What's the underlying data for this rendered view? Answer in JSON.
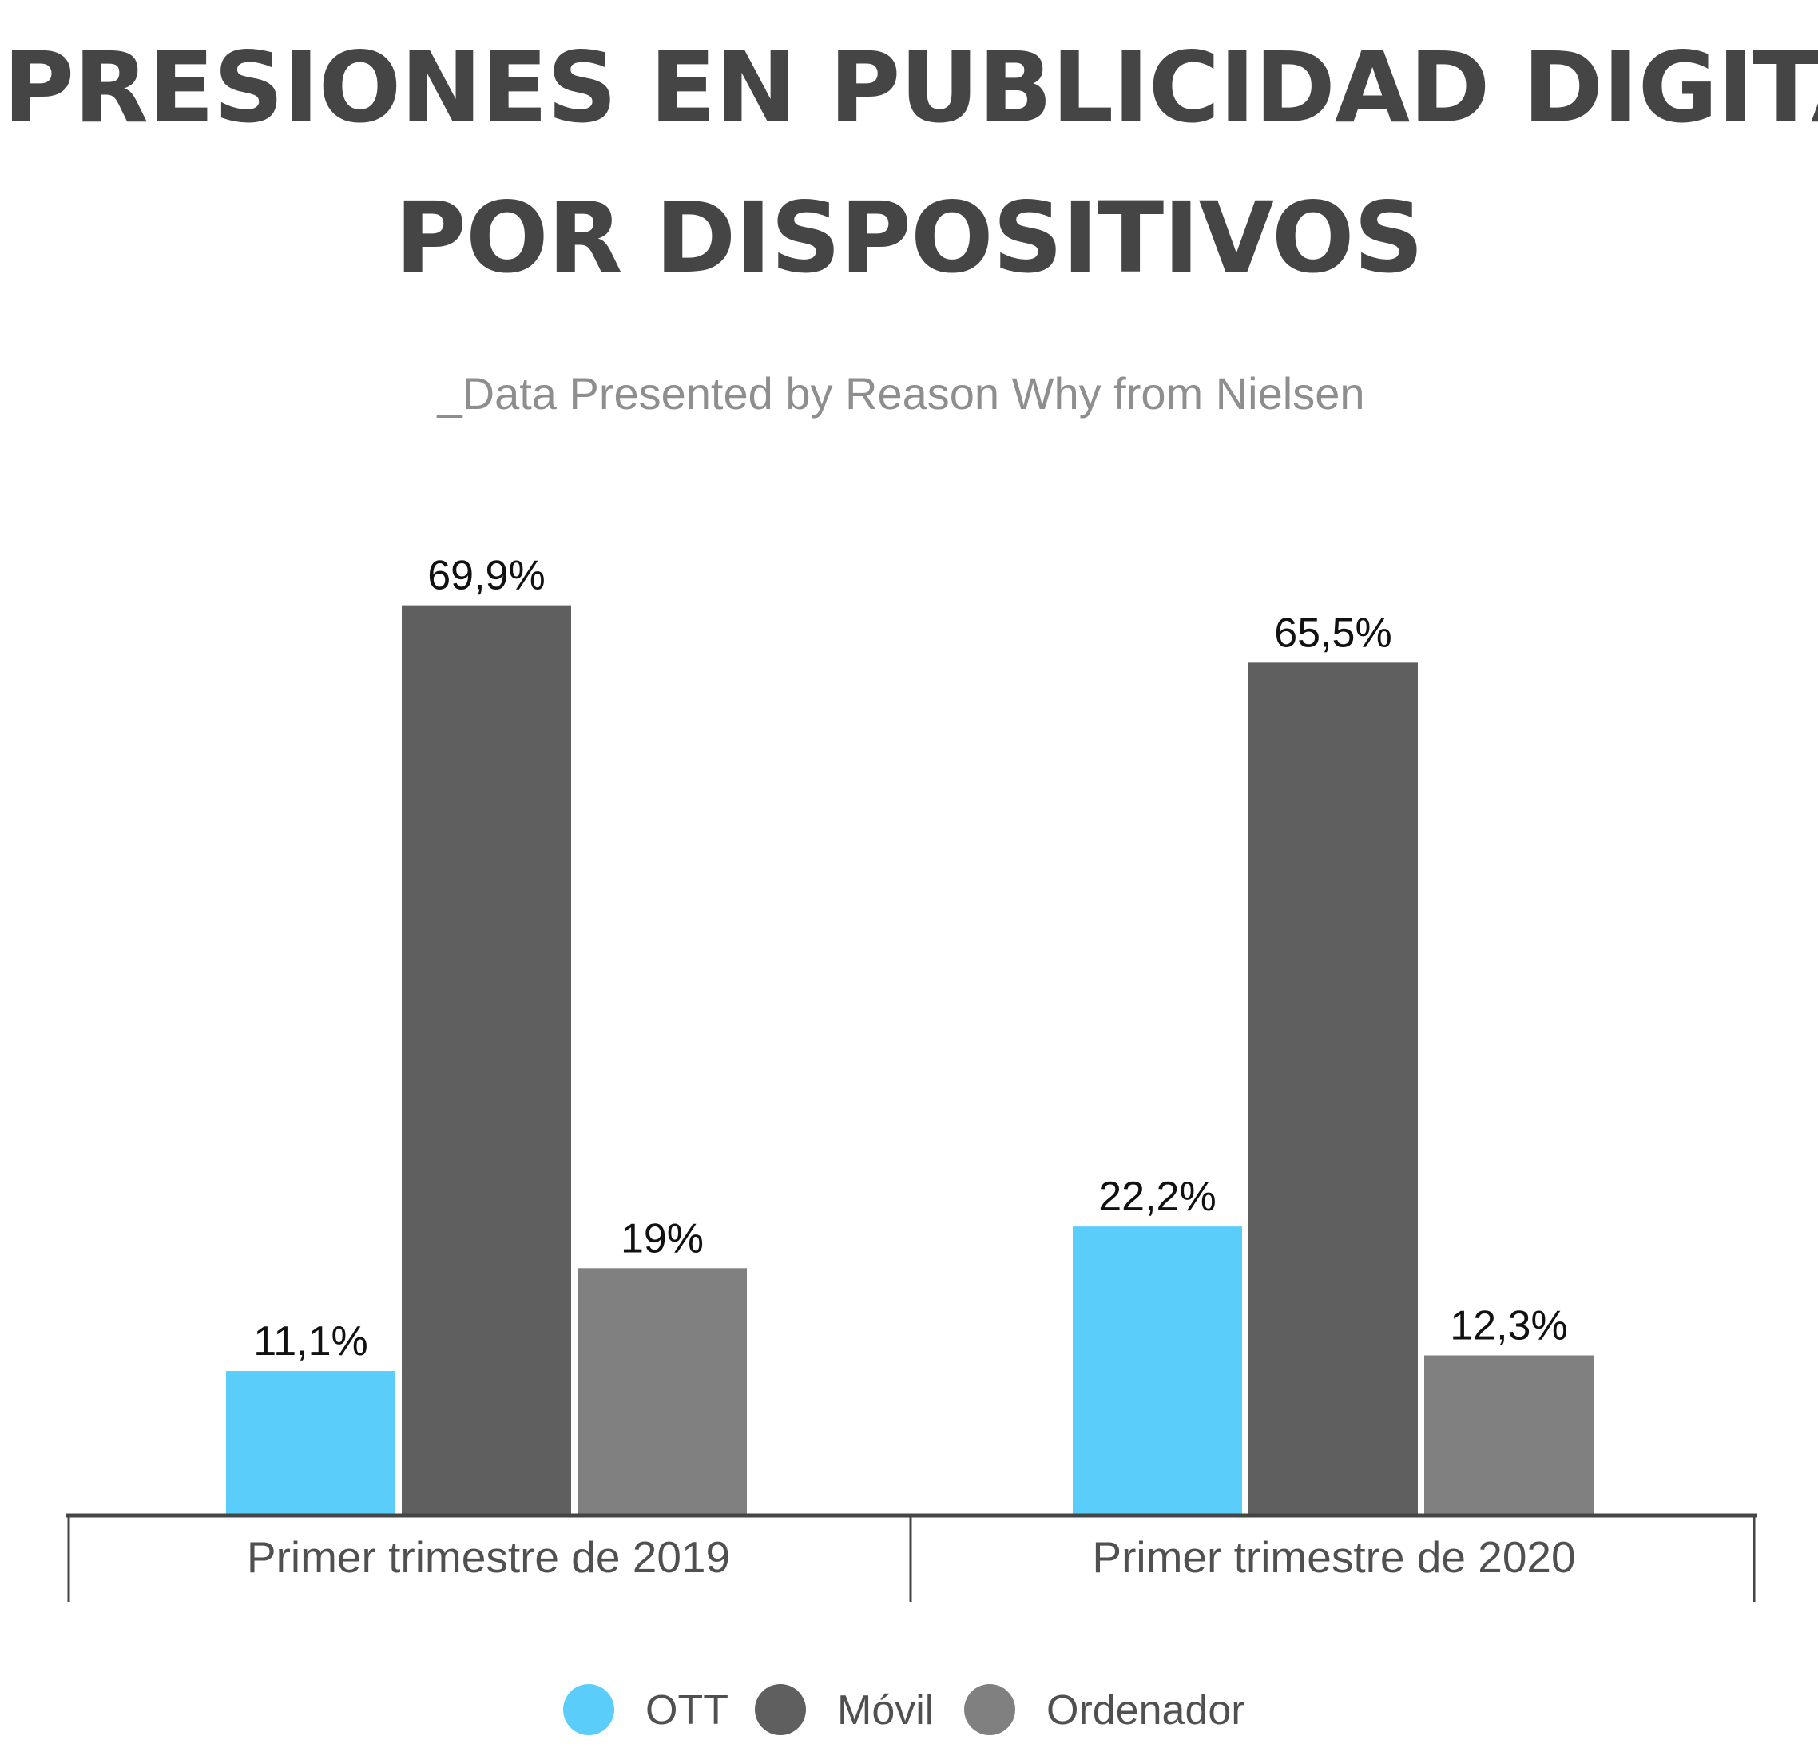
{
  "chart_data": {
    "type": "bar",
    "title_lines": [
      "IMPRESIONES EN PUBLICIDAD DIGITAL",
      "POR DISPOSITIVOS"
    ],
    "subtitle": "_Data Presented by Reason Why from Nielsen",
    "categories": [
      "Primer trimestre de 2019",
      "Primer trimestre de 2020"
    ],
    "series": [
      {
        "name": "OTT",
        "color": "#5bcdfb",
        "values": [
          11.1,
          22.2
        ],
        "labels": [
          "11,1%",
          "22,2%"
        ]
      },
      {
        "name": "Móvil",
        "color": "#5f5f5f",
        "values": [
          69.9,
          65.5
        ],
        "labels": [
          "69,9%",
          "65,5%"
        ]
      },
      {
        "name": "Ordenador",
        "color": "#808080",
        "values": [
          19,
          12.3
        ],
        "labels": [
          "19%",
          "12,3%"
        ]
      }
    ],
    "ylim": [
      0,
      100
    ],
    "grid": false,
    "legend_position": "bottom"
  }
}
